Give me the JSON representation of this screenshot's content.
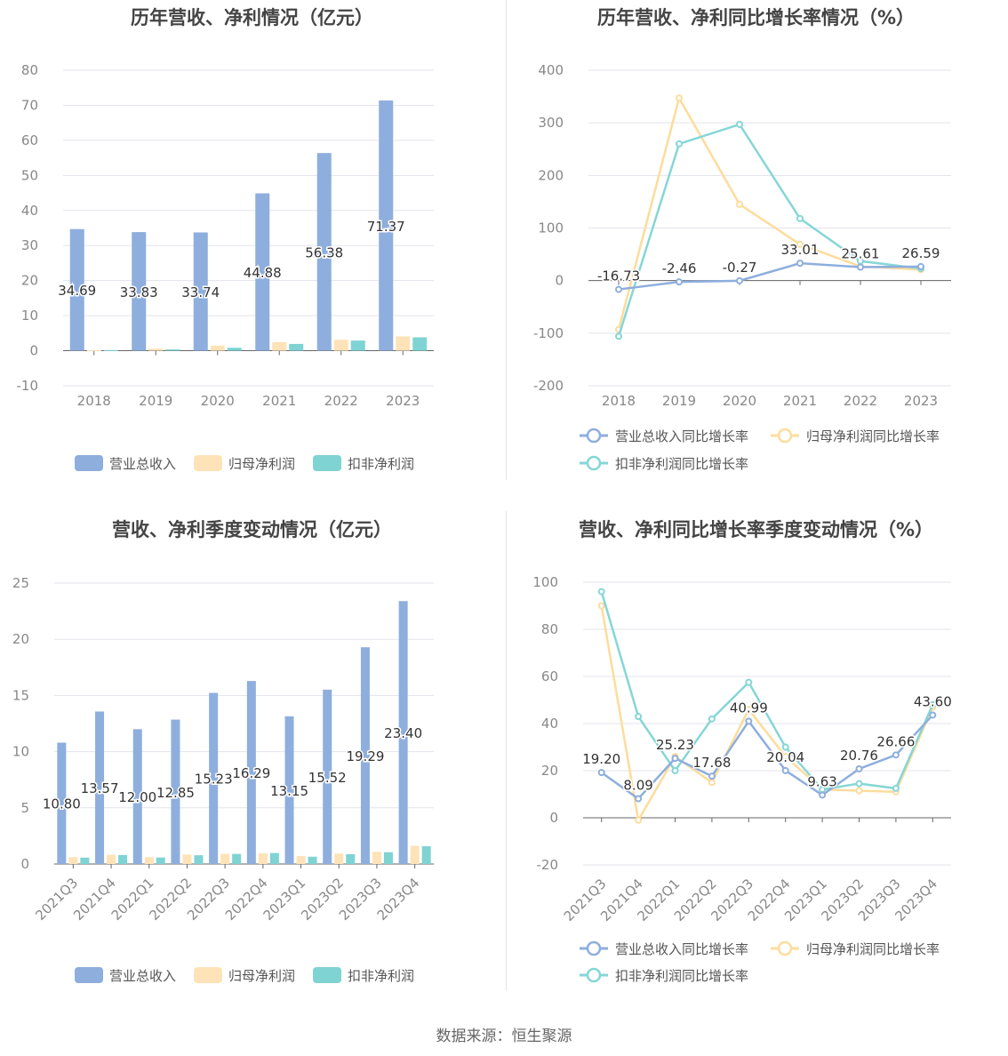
{
  "colors": {
    "revenue": "#8eaedd",
    "net_profit": "#fde3b7",
    "deducted_profit": "#7fd3d3",
    "revenue_line": "#8eaedd",
    "net_profit_line": "#fddc9c",
    "deducted_profit_line": "#86d6d6"
  },
  "source": "数据来源：恒生聚源",
  "chart_data": [
    {
      "type": "bar",
      "title": "历年营收、净利情况（亿元）",
      "categories": [
        "2018",
        "2019",
        "2020",
        "2021",
        "2022",
        "2023"
      ],
      "ylim": [
        -10,
        80
      ],
      "yticks": [
        -10,
        0,
        10,
        20,
        30,
        40,
        50,
        60,
        70,
        80
      ],
      "series": [
        {
          "name": "营业总收入",
          "values": [
            34.69,
            33.83,
            33.74,
            44.88,
            56.38,
            71.37
          ]
        },
        {
          "name": "归母净利润",
          "values": [
            0.13,
            0.59,
            1.45,
            2.45,
            3.11,
            4.09
          ]
        },
        {
          "name": "扣非净利润",
          "values": [
            0.18,
            0.37,
            0.85,
            1.93,
            2.9,
            3.82
          ]
        }
      ],
      "labels": [
        "34.69",
        "33.83",
        "33.74",
        "44.88",
        "56.38",
        "71.37"
      ],
      "legend": "bottom"
    },
    {
      "type": "line",
      "title": "历年营收、净利同比增长率情况（%）",
      "categories": [
        "2018",
        "2019",
        "2020",
        "2021",
        "2022",
        "2023"
      ],
      "ylim": [
        -200,
        400
      ],
      "yticks": [
        -200,
        -100,
        0,
        100,
        200,
        300,
        400
      ],
      "series": [
        {
          "name": "营业总收入同比增长率",
          "values": [
            -16.73,
            -2.46,
            -0.27,
            33.01,
            25.61,
            26.59
          ]
        },
        {
          "name": "归母净利润同比增长率",
          "values": [
            -93,
            347,
            145,
            69,
            27,
            21
          ]
        },
        {
          "name": "扣非净利润同比增长率",
          "values": [
            -106,
            260,
            297,
            118,
            37,
            23
          ]
        }
      ],
      "labels": [
        "-16.73",
        "-2.46",
        "-0.27",
        "33.01",
        "25.61",
        "26.59"
      ],
      "legend": "bottom"
    },
    {
      "type": "bar",
      "title": "营收、净利季度变动情况（亿元）",
      "categories": [
        "2021Q3",
        "2021Q4",
        "2022Q1",
        "2022Q2",
        "2022Q3",
        "2022Q4",
        "2023Q1",
        "2023Q2",
        "2023Q3",
        "2023Q4"
      ],
      "ylim": [
        0,
        25
      ],
      "yticks": [
        0,
        5,
        10,
        15,
        20,
        25
      ],
      "series": [
        {
          "name": "营业总收入",
          "values": [
            10.8,
            13.57,
            12.0,
            12.85,
            15.23,
            16.29,
            13.15,
            15.52,
            19.29,
            23.4
          ]
        },
        {
          "name": "归母净利润",
          "values": [
            0.62,
            0.82,
            0.62,
            0.84,
            0.91,
            0.96,
            0.7,
            0.93,
            1.08,
            1.62
          ]
        },
        {
          "name": "扣非净利润",
          "values": [
            0.57,
            0.8,
            0.58,
            0.78,
            0.9,
            0.98,
            0.65,
            0.87,
            1.05,
            1.58
          ]
        }
      ],
      "labels": [
        "10.80",
        "13.57",
        "12.00",
        "12.85",
        "15.23",
        "16.29",
        "13.15",
        "15.52",
        "19.29",
        "23.40"
      ],
      "legend": "bottom"
    },
    {
      "type": "line",
      "title": "营收、净利同比增长率季度变动情况（%）",
      "categories": [
        "2021Q3",
        "2021Q4",
        "2022Q1",
        "2022Q2",
        "2022Q3",
        "2022Q4",
        "2023Q1",
        "2023Q2",
        "2023Q3",
        "2023Q4"
      ],
      "ylim": [
        -20,
        100
      ],
      "yticks": [
        -20,
        0,
        20,
        40,
        60,
        80,
        100
      ],
      "series": [
        {
          "name": "营业总收入同比增长率",
          "values": [
            19.2,
            8.09,
            25.23,
            17.68,
            40.99,
            20.04,
            9.63,
            20.76,
            26.66,
            43.6
          ]
        },
        {
          "name": "归母净利润同比增长率",
          "values": [
            90,
            -1,
            26,
            15,
            46,
            26,
            12,
            11.5,
            11,
            47
          ]
        },
        {
          "name": "扣非净利润同比增长率",
          "values": [
            96,
            43,
            20,
            42,
            57.5,
            30,
            12,
            14.5,
            12.5,
            48
          ]
        }
      ],
      "labels": [
        "19.20",
        "8.09",
        "25.23",
        "17.68",
        "40.99",
        "20.04",
        "9.63",
        "20.76",
        "26.66",
        "43.60"
      ],
      "legend": "bottom"
    }
  ]
}
